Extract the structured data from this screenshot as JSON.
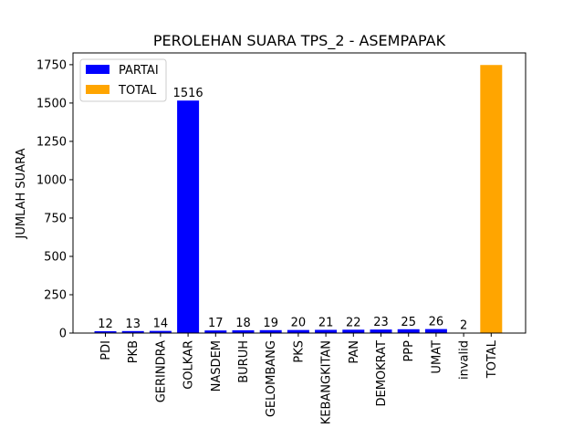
{
  "chart_data": {
    "type": "bar",
    "title": "PEROLEHAN SUARA TPS_2 - ASEMPAPAK",
    "xlabel": "",
    "ylabel": "JUMLAH SUARA",
    "ylim": [
      0,
      1750
    ],
    "yticks": [
      0,
      250,
      500,
      750,
      1000,
      1250,
      1500,
      1750
    ],
    "grid": false,
    "legend_placement": "top-left",
    "legend": [
      {
        "label": "PARTAI",
        "color": "#0000ff"
      },
      {
        "label": "TOTAL",
        "color": "#ffa500"
      }
    ],
    "bars": [
      {
        "category": "PDI",
        "value": 12,
        "label": "12",
        "color": "#0000ff"
      },
      {
        "category": "PKB",
        "value": 13,
        "label": "13",
        "color": "#0000ff"
      },
      {
        "category": "GERINDRA",
        "value": 14,
        "label": "14",
        "color": "#0000ff"
      },
      {
        "category": "GOLKAR",
        "value": 1516,
        "label": "1516",
        "color": "#0000ff"
      },
      {
        "category": "NASDEM",
        "value": 17,
        "label": "17",
        "color": "#0000ff"
      },
      {
        "category": "BURUH",
        "value": 18,
        "label": "18",
        "color": "#0000ff"
      },
      {
        "category": "GELOMBANG",
        "value": 19,
        "label": "19",
        "color": "#0000ff"
      },
      {
        "category": "PKS",
        "value": 20,
        "label": "20",
        "color": "#0000ff"
      },
      {
        "category": "KEBANGKITAN",
        "value": 21,
        "label": "21",
        "color": "#0000ff"
      },
      {
        "category": "PAN",
        "value": 22,
        "label": "22",
        "color": "#0000ff"
      },
      {
        "category": "DEMOKRAT",
        "value": 23,
        "label": "23",
        "color": "#0000ff"
      },
      {
        "category": "PPP",
        "value": 25,
        "label": "25",
        "color": "#0000ff"
      },
      {
        "category": "UMAT",
        "value": 26,
        "label": "26",
        "color": "#0000ff"
      },
      {
        "category": "invalid",
        "value": 2,
        "label": "2",
        "color": "#ff0000"
      },
      {
        "category": "TOTAL",
        "value": 1748,
        "label": "",
        "color": "#ffa500"
      }
    ]
  }
}
